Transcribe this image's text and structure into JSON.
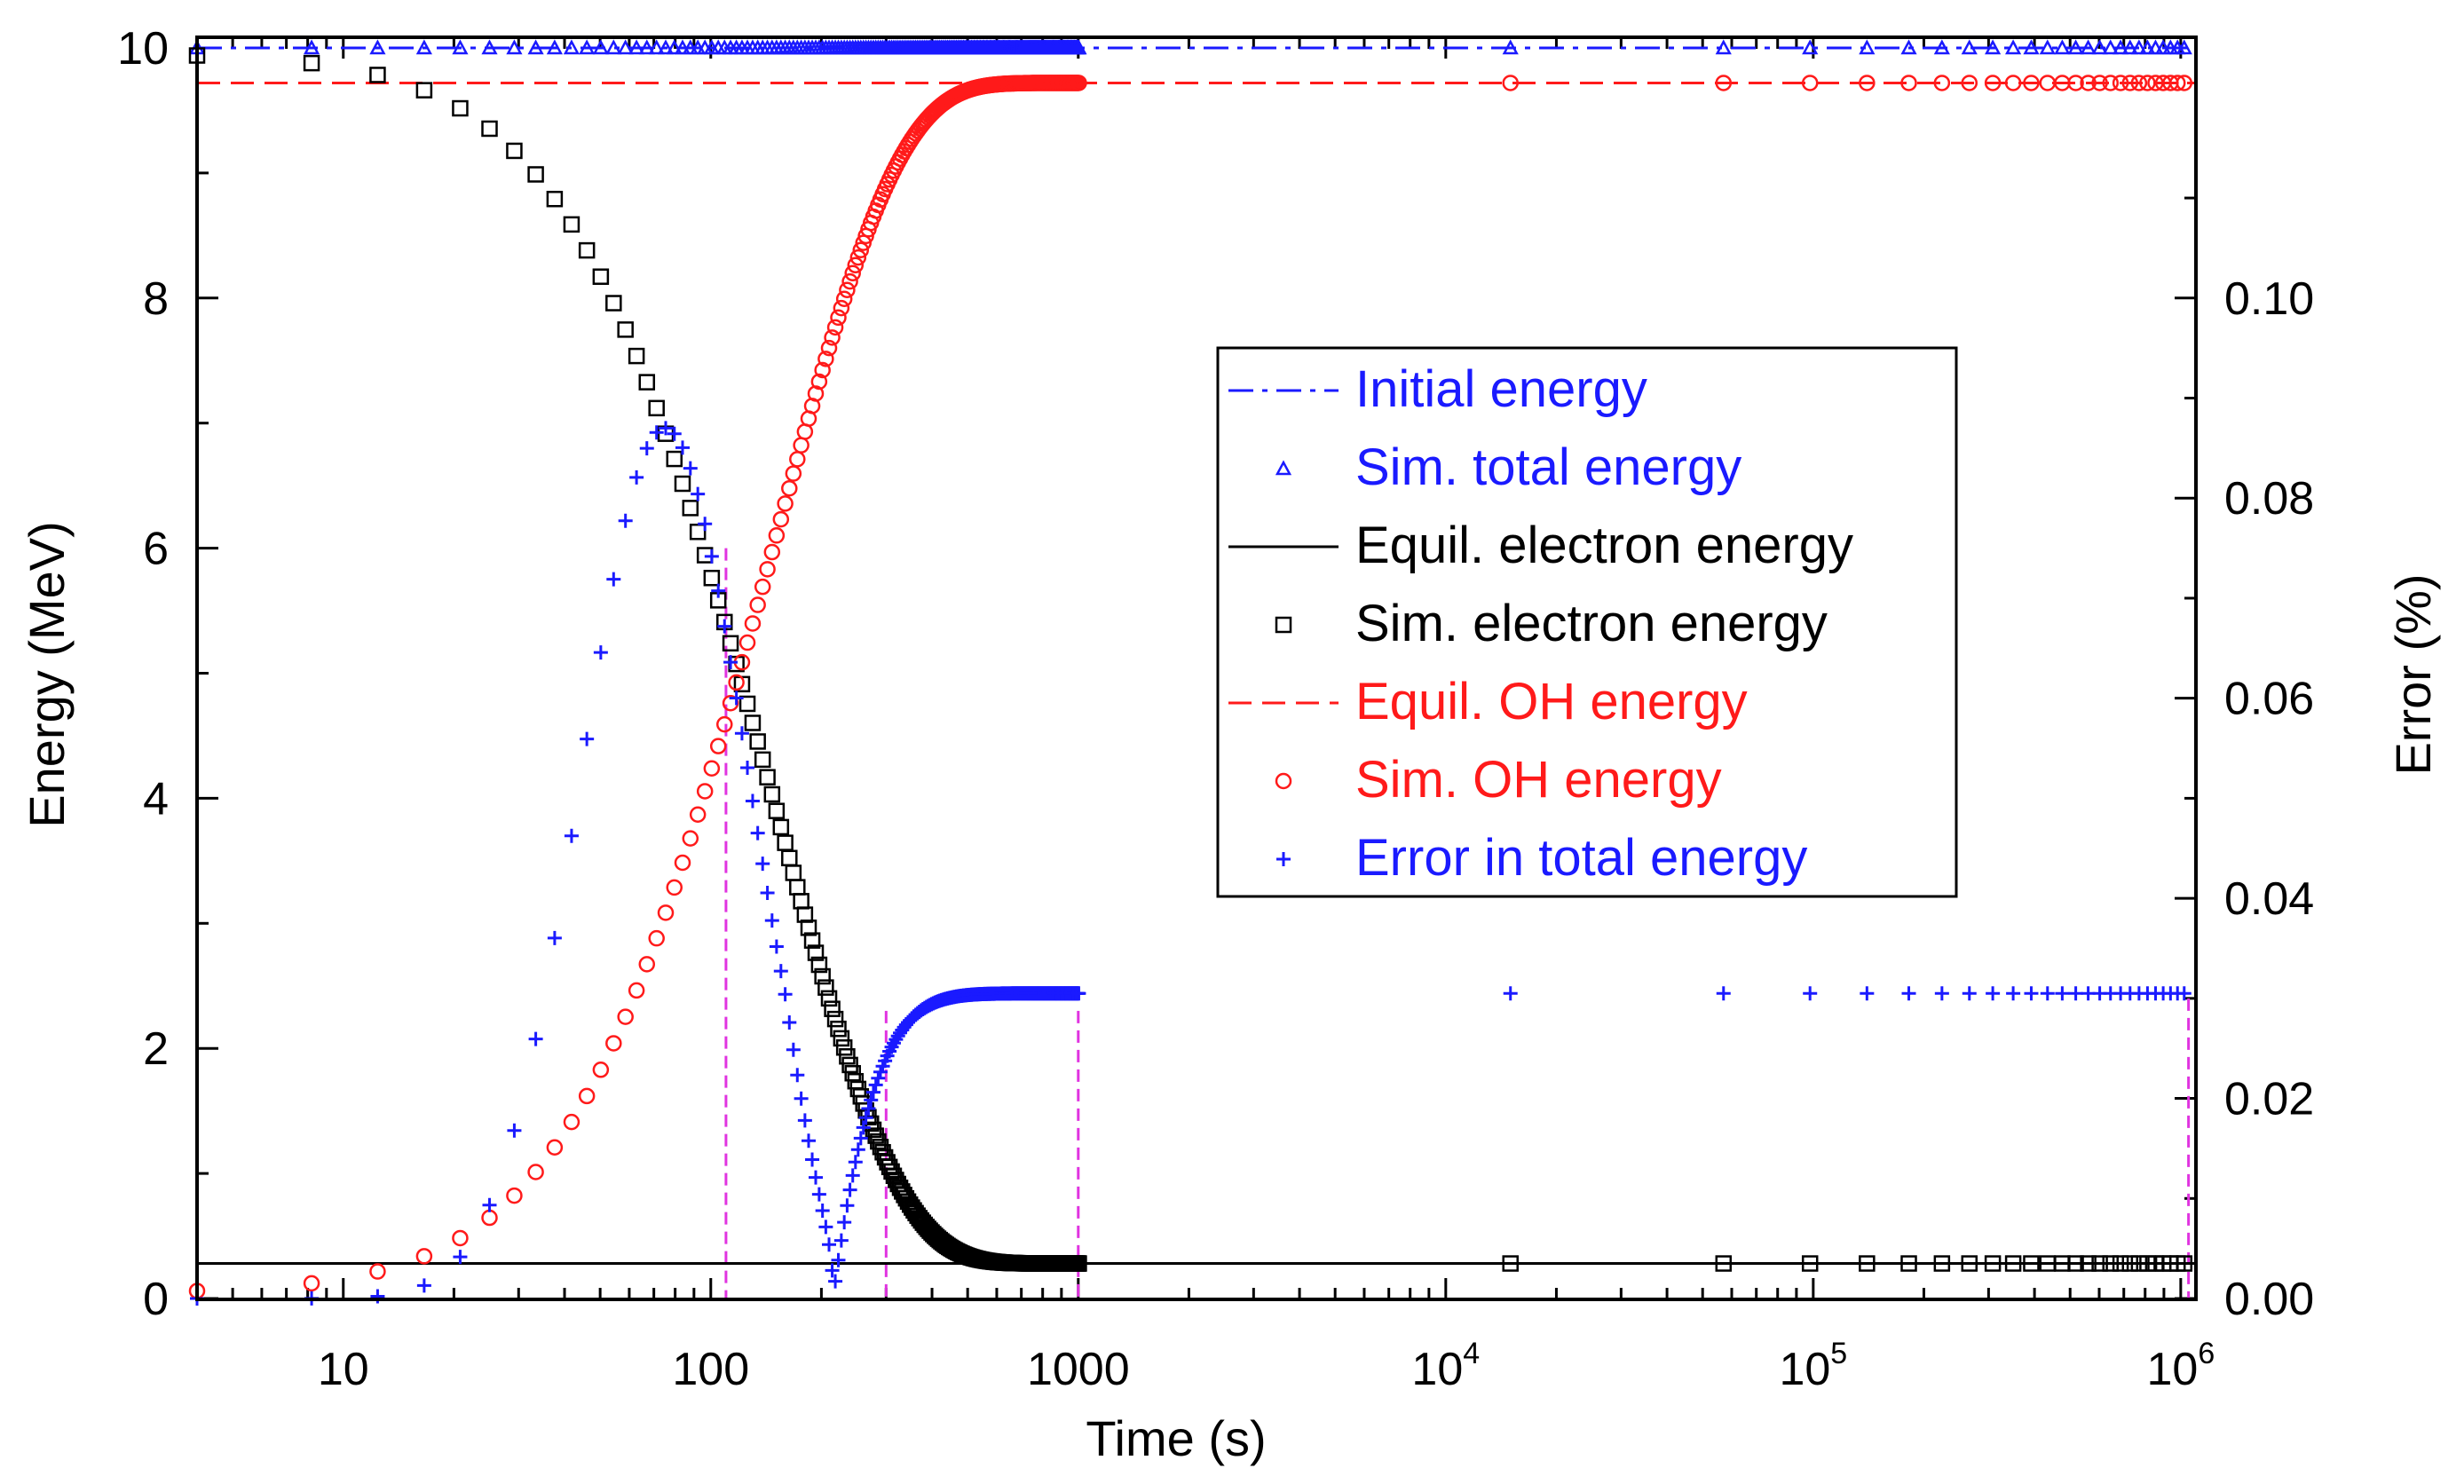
{
  "chart_data": {
    "type": "scatter",
    "title": "",
    "xlabel": "Time (s)",
    "ylabel": "Energy (MeV)",
    "y2label": "Error (%)",
    "xscale": "log",
    "xlim": [
      4,
      1100000
    ],
    "ylim": [
      0,
      10
    ],
    "y2lim": [
      0,
      0.125
    ],
    "x_ticks": [
      {
        "value": 10,
        "base": "10",
        "exp": ""
      },
      {
        "value": 100,
        "base": "100",
        "exp": ""
      },
      {
        "value": 1000,
        "base": "1000",
        "exp": ""
      },
      {
        "value": 10000,
        "base": "10",
        "exp": "4"
      },
      {
        "value": 100000,
        "base": "10",
        "exp": "5"
      },
      {
        "value": 1000000,
        "base": "10",
        "exp": "6"
      }
    ],
    "y_ticks": [
      "0",
      "2",
      "4",
      "6",
      "8",
      "10"
    ],
    "y2_ticks": [
      "0.00",
      "0.02",
      "0.04",
      "0.06",
      "0.08",
      "0.10"
    ],
    "colors": {
      "blue": "#1a1aff",
      "red": "#ff1a1a",
      "black": "#000000",
      "magenta": "#e033e0"
    },
    "vlines": [
      {
        "x": 110,
        "y_top": 6.0
      },
      {
        "x": 300,
        "y_top": 2.3
      },
      {
        "x": 1000,
        "y_top": 2.3
      },
      {
        "x": 1050000,
        "y_top": 2.4
      }
    ],
    "legend": {
      "position": "center-right",
      "entries": [
        {
          "label": "Initial energy",
          "style": "dashdot",
          "color": "#1a1aff"
        },
        {
          "label": "Sim. total energy",
          "style": "triangle",
          "color": "#1a1aff"
        },
        {
          "label": "Equil. electron energy",
          "style": "solid",
          "color": "#000000"
        },
        {
          "label": "Sim. electron energy",
          "style": "square",
          "color": "#000000"
        },
        {
          "label": "Equil. OH energy",
          "style": "dashed",
          "color": "#ff1a1a"
        },
        {
          "label": "Sim. OH energy",
          "style": "circle",
          "color": "#ff1a1a"
        },
        {
          "label": "Error in total energy",
          "style": "plus",
          "color": "#1a1aff"
        }
      ]
    },
    "series": [
      {
        "name": "Initial energy",
        "kind": "line",
        "style": "dashdot",
        "color": "#1a1aff",
        "axis": "left",
        "y": 10.0
      },
      {
        "name": "Equil. electron energy",
        "kind": "line",
        "style": "solid",
        "color": "#000000",
        "axis": "left",
        "y": 0.28
      },
      {
        "name": "Equil. OH energy",
        "kind": "line",
        "style": "dashed",
        "color": "#ff1a1a",
        "axis": "left",
        "y": 9.72
      },
      {
        "name": "Sim. total energy",
        "kind": "markers",
        "marker": "triangle",
        "color": "#1a1aff",
        "axis": "left",
        "t_sim": {
          "start": 4,
          "dt": 4.2,
          "n": 239
        },
        "t_extra": [
          15000,
          57000,
          98000,
          140000,
          182000,
          224000,
          266000,
          308000,
          350000,
          392000,
          434000,
          476000,
          518000,
          560000,
          602000,
          644000,
          686000,
          728000,
          770000,
          812000,
          854000,
          896000,
          938000,
          980000,
          1022000
        ],
        "model": "total"
      },
      {
        "name": "Sim. electron energy",
        "kind": "markers",
        "marker": "square",
        "color": "#000000",
        "axis": "left",
        "t_sim": {
          "start": 4,
          "dt": 4.2,
          "n": 239
        },
        "t_extra": [
          15000,
          57000,
          98000,
          140000,
          182000,
          224000,
          266000,
          308000,
          350000,
          392000,
          434000,
          476000,
          518000,
          560000,
          602000,
          644000,
          686000,
          728000,
          770000,
          812000,
          854000,
          896000,
          938000,
          980000,
          1022000
        ],
        "model": "electron",
        "model_params": {
          "eq": 0.28,
          "amplitude": 9.68,
          "tau_rise": 37,
          "decay_a": 0.0052,
          "decay_b": 1e-05
        }
      },
      {
        "name": "Sim. OH energy",
        "kind": "markers",
        "marker": "circle",
        "color": "#ff1a1a",
        "axis": "left",
        "t_sim": {
          "start": 4,
          "dt": 4.2,
          "n": 239
        },
        "t_extra": [
          15000,
          57000,
          98000,
          140000,
          182000,
          224000,
          266000,
          308000,
          350000,
          392000,
          434000,
          476000,
          518000,
          560000,
          602000,
          644000,
          686000,
          728000,
          770000,
          812000,
          854000,
          896000,
          938000,
          980000,
          1022000
        ],
        "model": "oh",
        "model_params": {
          "total": 10.0,
          "eq_electron": 0.28
        }
      },
      {
        "name": "Error in total energy",
        "kind": "markers",
        "marker": "plus",
        "color": "#1a1aff",
        "axis": "right",
        "t_sim": {
          "start": 4,
          "dt": 4.2,
          "n": 239
        },
        "t_extra": [
          15000,
          57000,
          98000,
          140000,
          182000,
          224000,
          266000,
          308000,
          350000,
          392000,
          434000,
          476000,
          518000,
          560000,
          602000,
          644000,
          686000,
          728000,
          770000,
          812000,
          854000,
          896000,
          938000,
          980000,
          1022000
        ],
        "model": "error",
        "model_params": {
          "peak": 0.087,
          "peak_t": 75,
          "sigma": 0.52,
          "zero_t": 215,
          "final": 0.0305,
          "tau_final": 55
        }
      }
    ]
  }
}
